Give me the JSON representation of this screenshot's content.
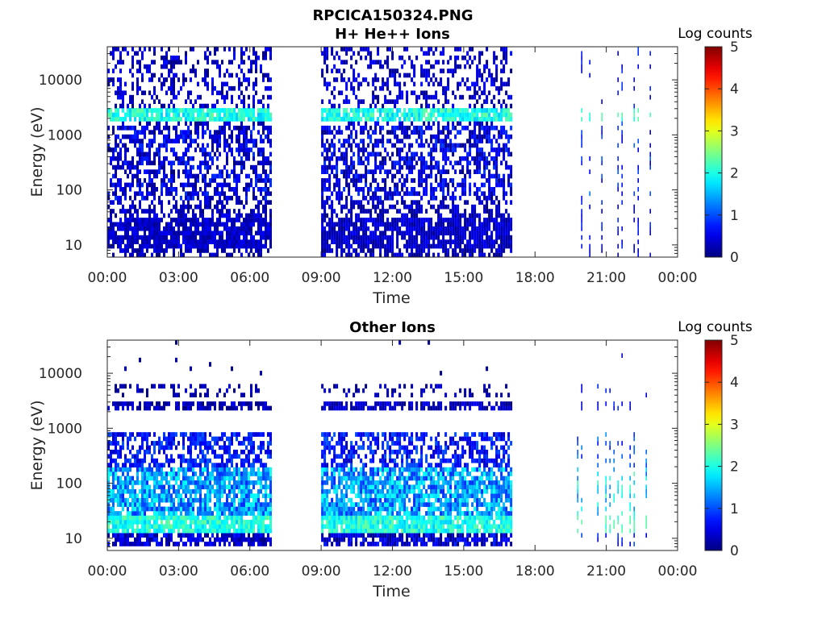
{
  "figure": {
    "title": "RPCICA150324.PNG"
  },
  "chart_data": [
    {
      "type": "heatmap",
      "title": "H+ He++ Ions",
      "xlabel": "Time",
      "ylabel": "Energy (eV)",
      "x_ticks": [
        "00:00",
        "03:00",
        "06:00",
        "09:00",
        "12:00",
        "15:00",
        "18:00",
        "21:00",
        "00:00"
      ],
      "xlim_hours": [
        0,
        24
      ],
      "y_scale": "log",
      "y_ticks": [
        10,
        100,
        1000,
        10000
      ],
      "y_tick_labels": [
        "10",
        "100",
        "1000",
        "10000"
      ],
      "ylim": [
        6,
        40000
      ],
      "colorbar": {
        "label": "Log counts",
        "range": [
          0,
          5
        ],
        "ticks": [
          "0",
          "1",
          "2",
          "3",
          "4",
          "5"
        ],
        "colormap": "jet"
      },
      "data_intervals_hours": [
        {
          "start": 0.0,
          "end": 6.85,
          "mode": "dense"
        },
        {
          "start": 9.0,
          "end": 17.0,
          "mode": "dense"
        },
        {
          "start": 19.6,
          "end": 22.85,
          "mode": "sparse"
        }
      ],
      "features": [
        {
          "energy_ev": 2200,
          "level": 2.0,
          "note": "persistent band"
        },
        {
          "energy_range_ev": [
            80,
            1200
          ],
          "level": 0.6
        }
      ]
    },
    {
      "type": "heatmap",
      "title": "Other Ions",
      "xlabel": "Time",
      "ylabel": "Energy (eV)",
      "x_ticks": [
        "00:00",
        "03:00",
        "06:00",
        "09:00",
        "12:00",
        "15:00",
        "18:00",
        "21:00",
        "00:00"
      ],
      "xlim_hours": [
        0,
        24
      ],
      "y_scale": "log",
      "y_ticks": [
        10,
        100,
        1000,
        10000
      ],
      "y_tick_labels": [
        "10",
        "100",
        "1000",
        "10000"
      ],
      "ylim": [
        6,
        40000
      ],
      "colorbar": {
        "label": "Log counts",
        "range": [
          0,
          5
        ],
        "ticks": [
          "0",
          "1",
          "2",
          "3",
          "4",
          "5"
        ],
        "colormap": "jet"
      },
      "data_intervals_hours": [
        {
          "start": 0.0,
          "end": 6.85,
          "mode": "dense"
        },
        {
          "start": 9.0,
          "end": 17.0,
          "mode": "dense"
        },
        {
          "start": 19.6,
          "end": 22.85,
          "mode": "sparse"
        }
      ],
      "features": [
        {
          "energy_ev": 2500,
          "level": 0.4,
          "note": "thin band"
        },
        {
          "energy_range_ev": [
            15,
            600
          ],
          "level": 1.8
        }
      ]
    }
  ]
}
